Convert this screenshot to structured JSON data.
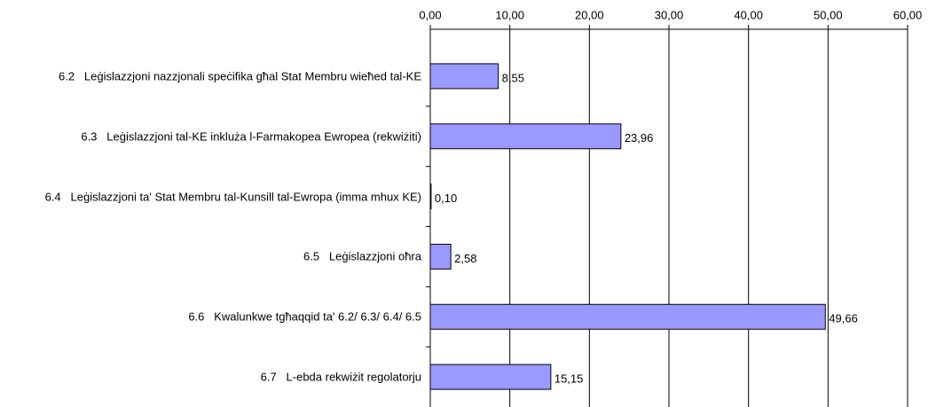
{
  "chart_data": {
    "type": "hbar",
    "categories": [
      "6.2   Leġislazzjoni nazzjonali speċifika għal Stat Membru wieħed tal-KE",
      "6.3   Leġislazzjoni tal-KE inkluża l-Farmakopea Ewropea (rekwiżiti)",
      "6.4   Leġislazzjoni ta' Stat Membru tal-Kunsill tal-Ewropa (imma mhux KE)",
      "6.5   Leġislazzjoni oħra",
      "6.6   Kwalunkwe tgħaqqid ta' 6.2/ 6.3/ 6.4/ 6.5",
      "6.7   L-ebda rekwiżit regolatorju"
    ],
    "values": [
      8.55,
      23.96,
      0.1,
      2.58,
      49.66,
      15.15
    ],
    "value_labels": [
      "8,55",
      "23,96",
      "0,10",
      "2,58",
      "49,66",
      "15,15"
    ],
    "color": "#9999ff",
    "xlim": [
      0,
      60
    ],
    "xticks": [
      {
        "value": 0,
        "label": "0,00"
      },
      {
        "value": 10,
        "label": "10,00"
      },
      {
        "value": 20,
        "label": "20,00"
      },
      {
        "value": 30,
        "label": "30,00"
      },
      {
        "value": 40,
        "label": "40,00"
      },
      {
        "value": 50,
        "label": "50,00"
      },
      {
        "value": 60,
        "label": "60,00"
      }
    ],
    "grid": true
  }
}
